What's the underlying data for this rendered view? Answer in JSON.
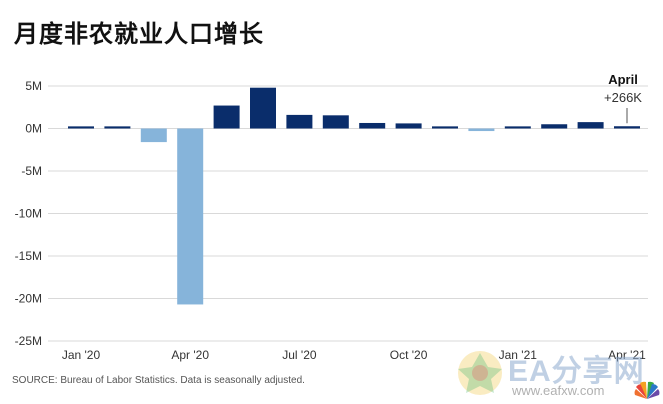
{
  "title": "月度非农就业人口增长",
  "source_note": "SOURCE: Bureau of Labor Statistics. Data is seasonally adjusted.",
  "watermark": {
    "text": "EA分享网",
    "url": "www.eafxw.com"
  },
  "chart_data": {
    "type": "bar",
    "categories": [
      "Jan '20",
      "Feb '20",
      "Mar '20",
      "Apr '20",
      "May '20",
      "Jun '20",
      "Jul '20",
      "Aug '20",
      "Sep '20",
      "Oct '20",
      "Nov '20",
      "Dec '20",
      "Jan '21",
      "Feb '21",
      "Mar '21",
      "Apr '21"
    ],
    "values": [
      0.25,
      0.25,
      -1.6,
      -20.7,
      2.7,
      4.8,
      1.6,
      1.55,
      0.65,
      0.6,
      0.25,
      -0.3,
      0.25,
      0.5,
      0.75,
      0.266
    ],
    "unit": "M",
    "ylim": [
      -25,
      5
    ],
    "yticks": [
      5,
      0,
      -5,
      -10,
      -15,
      -20,
      -25
    ],
    "ytick_labels": [
      "5M",
      "0M",
      "-5M",
      "-10M",
      "-15M",
      "-20M",
      "-25M"
    ],
    "xtick_labels": [
      "Jan '20",
      "Apr '20",
      "Jul '20",
      "Oct '20",
      "Jan '21",
      "Apr '21"
    ],
    "xtick_indices": [
      0,
      3,
      6,
      9,
      12,
      15
    ],
    "grid": true,
    "colors": {
      "positive": "#0a2d6b",
      "negative": "#86b4da",
      "grid": "#d9d9d9"
    },
    "annotation": {
      "index": 15,
      "title": "April",
      "value": "+266K"
    }
  }
}
